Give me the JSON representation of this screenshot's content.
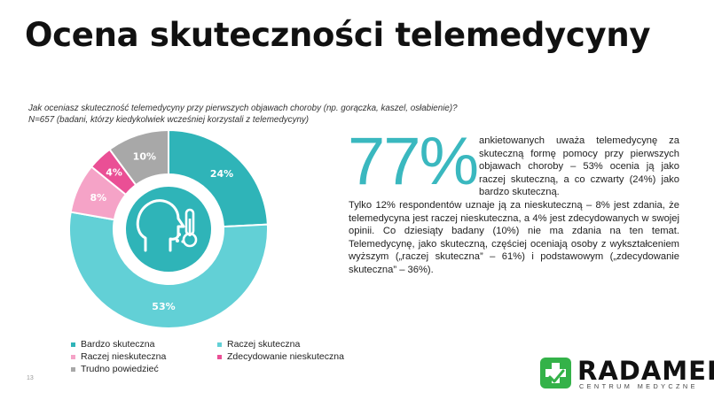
{
  "title": "Ocena skuteczności telemedycyny",
  "question": {
    "line1": "Jak oceniasz skuteczność telemedycyny przy pierwszych objawach choroby (np. gorączka, kaszel, osłabienie)?",
    "line2": "N=657 (badani, którzy kiedykolwiek wcześniej korzystali z telemedycyny)"
  },
  "big_stat": "77%",
  "desc1": "ankietowanych uważa telemedycynę za skuteczną formę pomocy przy pierwszych objawach choroby – 53% ocenia ją jako raczej skuteczną, a co czwarty (24%) jako bardzo skuteczną.",
  "desc2": "Tylko 12% respondentów uznaje ją za nieskuteczną – 8% jest zdania, że telemedycyna jest raczej nieskuteczna, a 4% jest zdecydowanych w swojej opinii. Co dziesiąty badany (10%) nie ma zdania na ten temat. Telemedycynę, jako skuteczną, częściej oceniają osoby z wykształceniem wyższym („raczej skuteczna” – 61%) i podstawowym („zdecydowanie skuteczna” – 36%).",
  "page_number": "13",
  "logo": {
    "name": "RADAMED",
    "subtitle": "CENTRUM MEDYCZNE"
  },
  "icon": "face-thermometer-icon",
  "chart_data": {
    "type": "pie",
    "variant": "donut",
    "unit": "%",
    "slices": [
      {
        "label": "Bardzo skuteczna",
        "value": 24,
        "display": "24%",
        "color": "#2fb4b8"
      },
      {
        "label": "Raczej skuteczna",
        "value": 53,
        "display": "53%",
        "color": "#62d0d6"
      },
      {
        "label": "Raczej nieskuteczna",
        "value": 8,
        "display": "8%",
        "color": "#f5a3c7"
      },
      {
        "label": "Zdecydowanie nieskuteczna",
        "value": 4,
        "display": "4%",
        "color": "#ea4f95"
      },
      {
        "label": "Trudno powiedzieć",
        "value": 10,
        "display": "10%",
        "color": "#a8a8a8"
      }
    ],
    "legend_position": "bottom"
  }
}
